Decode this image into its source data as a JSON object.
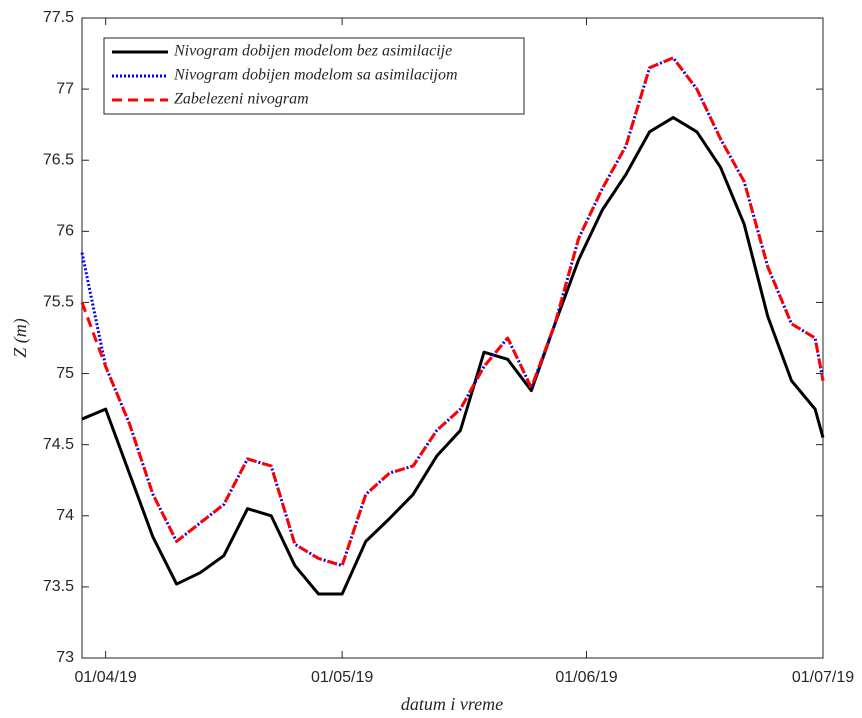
{
  "chart_data": {
    "type": "line",
    "xlabel": "datum i vreme",
    "ylabel": "Z (m)",
    "x": [
      "2019-03-29",
      "2019-04-01",
      "2019-04-04",
      "2019-04-07",
      "2019-04-10",
      "2019-04-13",
      "2019-04-16",
      "2019-04-19",
      "2019-04-22",
      "2019-04-25",
      "2019-04-28",
      "2019-05-01",
      "2019-05-04",
      "2019-05-07",
      "2019-05-10",
      "2019-05-13",
      "2019-05-16",
      "2019-05-19",
      "2019-05-22",
      "2019-05-25",
      "2019-05-28",
      "2019-05-31",
      "2019-06-03",
      "2019-06-06",
      "2019-06-09",
      "2019-06-12",
      "2019-06-15",
      "2019-06-18",
      "2019-06-21",
      "2019-06-24",
      "2019-06-27",
      "2019-06-30",
      "2019-07-01"
    ],
    "series": [
      {
        "name": "Nivogram dobijen modelom bez asimilacije",
        "color": "#000000",
        "linestyle": "solid",
        "values": [
          74.68,
          74.75,
          74.3,
          73.85,
          73.52,
          73.6,
          73.72,
          74.05,
          74.0,
          73.65,
          73.45,
          73.45,
          73.82,
          73.98,
          74.15,
          74.42,
          74.6,
          75.15,
          75.1,
          74.88,
          75.35,
          75.8,
          76.15,
          76.4,
          76.7,
          76.8,
          76.7,
          76.45,
          76.05,
          75.4,
          74.95,
          74.75,
          74.55
        ]
      },
      {
        "name": "Nivogram dobijen modelom sa asimilacijom",
        "color": "#0000ff",
        "linestyle": "dotted",
        "values": [
          75.85,
          75.05,
          74.65,
          74.15,
          73.82,
          73.95,
          74.08,
          74.4,
          74.35,
          73.8,
          73.7,
          73.65,
          74.15,
          74.3,
          74.35,
          74.6,
          74.75,
          75.05,
          75.25,
          74.9,
          75.35,
          75.95,
          76.3,
          76.6,
          77.15,
          77.22,
          77.0,
          76.65,
          76.35,
          75.75,
          75.35,
          75.25,
          74.95
        ]
      },
      {
        "name": "Zabelezeni nivogram",
        "color": "#ff0000",
        "linestyle": "dashed",
        "values": [
          75.5,
          75.05,
          74.65,
          74.15,
          73.82,
          73.95,
          74.08,
          74.4,
          74.35,
          73.8,
          73.7,
          73.65,
          74.15,
          74.3,
          74.35,
          74.6,
          74.75,
          75.05,
          75.25,
          74.9,
          75.35,
          75.95,
          76.3,
          76.6,
          77.15,
          77.22,
          77.0,
          76.65,
          76.35,
          75.75,
          75.35,
          75.25,
          74.95
        ]
      }
    ],
    "xlim": [
      "2019-03-29",
      "2019-07-01"
    ],
    "xticks": [
      {
        "value": "2019-04-01",
        "label": "01/04/19"
      },
      {
        "value": "2019-05-01",
        "label": "01/05/19"
      },
      {
        "value": "2019-06-01",
        "label": "01/06/19"
      },
      {
        "value": "2019-07-01",
        "label": "01/07/19"
      }
    ],
    "ylim": [
      73,
      77.5
    ],
    "yticks": [
      73,
      73.5,
      74,
      74.5,
      75,
      75.5,
      76,
      76.5,
      77,
      77.5
    ],
    "legend": "upper left",
    "grid": false
  }
}
